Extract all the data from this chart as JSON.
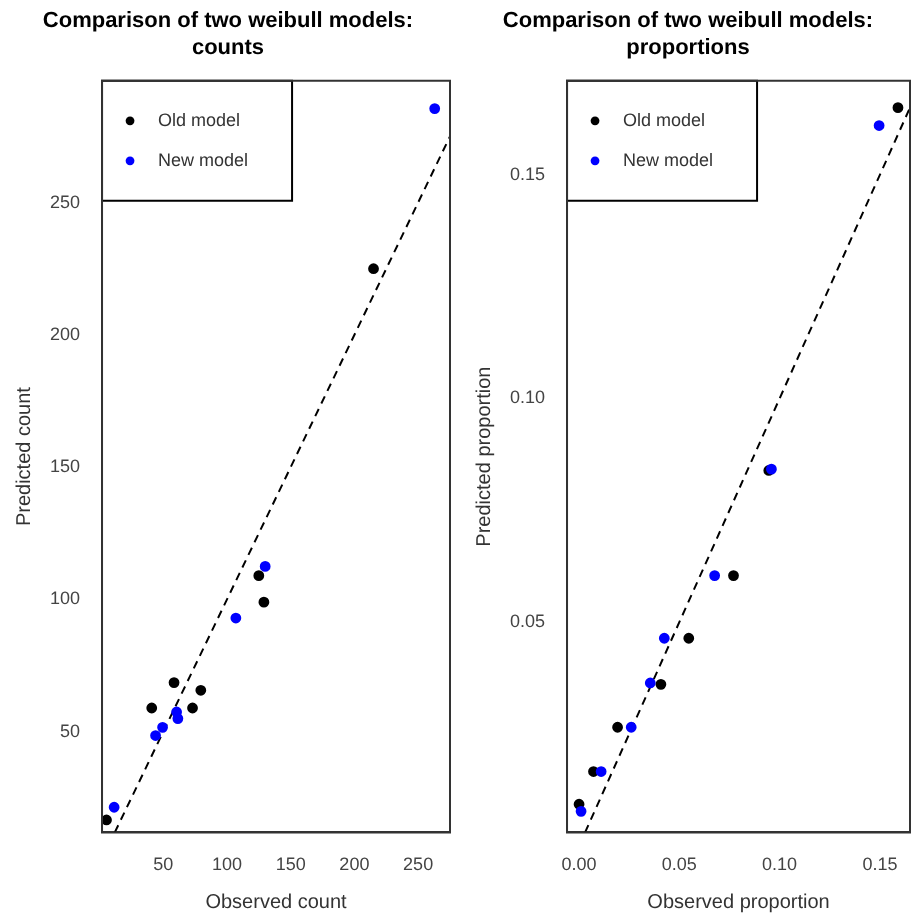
{
  "chart_data": [
    {
      "type": "scatter",
      "title": "Comparison of two weibull models: counts",
      "xlabel": "Observed count",
      "ylabel": "Predicted count",
      "xlim": [
        2,
        275
      ],
      "ylim": [
        12,
        296
      ],
      "xticks": [
        50,
        100,
        150,
        200,
        250
      ],
      "yticks": [
        50,
        100,
        150,
        200,
        250
      ],
      "grid": false,
      "legend": "top left",
      "marker": "circle",
      "series": [
        {
          "name": "Old model",
          "color": "#000000",
          "x": [
            215,
            125,
            129,
            58.5,
            79.5,
            41,
            73,
            5.5
          ],
          "values": [
            225,
            109,
            99,
            68.6,
            65.7,
            59,
            59,
            16.7
          ]
        },
        {
          "name": "New model",
          "color": "#0000ff",
          "x": [
            263,
            130,
            107,
            60.5,
            61.5,
            49.5,
            44,
            11.5
          ],
          "values": [
            285.5,
            112.5,
            93,
            57.5,
            55,
            51.7,
            48.6,
            21.5
          ]
        },
        {
          "type": "line",
          "color": "#000000",
          "line_style": "dashed",
          "marker": "none",
          "x": [
            12,
            275
          ],
          "values": [
            12,
            275
          ]
        }
      ]
    },
    {
      "type": "scatter",
      "title": "Comparison of two weibull models: proportions",
      "xlabel": "Observed proportion",
      "ylabel": "Predicted proportion",
      "xlim": [
        -0.006,
        0.165
      ],
      "ylim": [
        0.003,
        0.171
      ],
      "xticks": [
        {
          "value": 0,
          "label": "0.00"
        },
        {
          "value": 0.05,
          "label": "0.05"
        },
        {
          "value": 0.1,
          "label": "0.10"
        },
        {
          "value": 0.15,
          "label": "0.15"
        }
      ],
      "yticks": [
        {
          "value": 0.05,
          "label": "0.05"
        },
        {
          "value": 0.1,
          "label": "0.10"
        },
        {
          "value": 0.15,
          "label": "0.15"
        }
      ],
      "grid": false,
      "legend": "top left",
      "marker": "circle",
      "series": [
        {
          "name": "Old model",
          "color": "#000000",
          "x": [
            0.159,
            0.0946,
            0.077,
            0.0547,
            0.0408,
            0.0192,
            0.0072,
            0.0
          ],
          "values": [
            0.165,
            0.0839,
            0.0604,
            0.0464,
            0.0361,
            0.0265,
            0.0166,
            0.0093
          ]
        },
        {
          "name": "New model",
          "color": "#0000ff",
          "x": [
            0.1496,
            0.0959,
            0.0676,
            0.0425,
            0.0355,
            0.026,
            0.011,
            0.001
          ],
          "values": [
            0.161,
            0.0842,
            0.0604,
            0.0464,
            0.0364,
            0.0265,
            0.0166,
            0.0077
          ]
        },
        {
          "type": "line",
          "color": "#000000",
          "line_style": "dashed",
          "marker": "none",
          "x": [
            0.003,
            0.165
          ],
          "values": [
            0.003,
            0.165
          ]
        }
      ]
    }
  ]
}
